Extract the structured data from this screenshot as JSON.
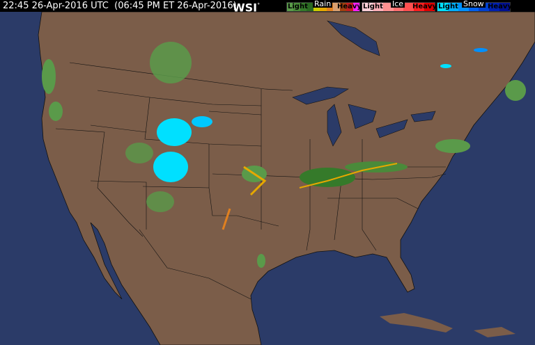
{
  "header": {
    "timestamp": "22:45 26-Apr-2016 UTC  (06:45 PM ET 26-Apr-2016)",
    "logo": "WSI",
    "logo_mark": "°"
  },
  "legend": {
    "rain": {
      "title": "Rain",
      "light": "Light",
      "heavy": "Heavy",
      "colors": [
        "#5a9a4a",
        "#4a8a3a",
        "#357a2a",
        "#2a6a22",
        "#cccc00",
        "#e6a800",
        "#e08020",
        "#d8a070",
        "#a04010",
        "#c02020",
        "#ff20ff"
      ]
    },
    "ice": {
      "title": "Ice",
      "light": "Light",
      "heavy": "Heavy",
      "colors": [
        "#ffd0d8",
        "#ffb0b8",
        "#ff9090",
        "#ff7070",
        "#ff5050",
        "#ff2020",
        "#e00000"
      ]
    },
    "snow": {
      "title": "Snow",
      "light": "Light",
      "heavy": "Heavy",
      "colors": [
        "#00e0ff",
        "#00b0ff",
        "#0090ff",
        "#0060f0",
        "#0040d0",
        "#0020b0",
        "#001090"
      ]
    }
  },
  "map": {
    "land_color": "#7b5d49",
    "water_color": "#2b3b68",
    "border_color": "#1a1a1a"
  }
}
